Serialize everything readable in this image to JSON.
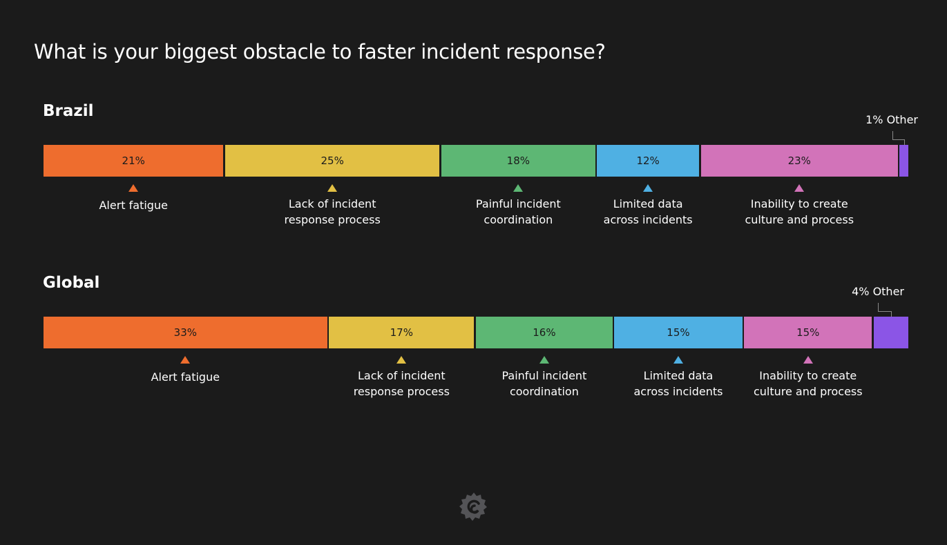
{
  "title": "What is your biggest obstacle to faster incident response?",
  "chart_data": [
    {
      "type": "bar",
      "orientation": "horizontal-stacked-100",
      "title": "Brazil",
      "categories": [
        "Alert fatigue",
        "Lack of incident response process",
        "Painful incident coordination",
        "Limited data across incidents",
        "Inability to create culture and process",
        "Other"
      ],
      "values": [
        21,
        25,
        18,
        12,
        23,
        1
      ],
      "value_labels": [
        "21%",
        "25%",
        "18%",
        "12%",
        "23%",
        "1% Other"
      ],
      "category_labels": [
        [
          "Alert fatigue"
        ],
        [
          "Lack of incident",
          "response process"
        ],
        [
          "Painful incident",
          "coordination"
        ],
        [
          "Limited data",
          "across incidents"
        ],
        [
          "Inability to create",
          "culture and process"
        ],
        []
      ]
    },
    {
      "type": "bar",
      "orientation": "horizontal-stacked-100",
      "title": "Global",
      "categories": [
        "Alert fatigue",
        "Lack of incident response process",
        "Painful incident coordination",
        "Limited data across incidents",
        "Inability to create culture and process",
        "Other"
      ],
      "values": [
        33,
        17,
        16,
        15,
        15,
        4
      ],
      "value_labels": [
        "33%",
        "17%",
        "16%",
        "15%",
        "15%",
        "4% Other"
      ],
      "category_labels": [
        [
          "Alert fatigue"
        ],
        [
          "Lack of incident",
          "response process"
        ],
        [
          "Painful incident",
          "coordination"
        ],
        [
          "Limited data",
          "across incidents"
        ],
        [
          "Inability to create",
          "culture and process"
        ],
        []
      ]
    }
  ],
  "colors": [
    "#ee6d2e",
    "#e2c044",
    "#5db774",
    "#4fb0e3",
    "#d273b9",
    "#8b55e6"
  ],
  "background": "#1b1b1b",
  "logo": "grafana-logo-icon"
}
